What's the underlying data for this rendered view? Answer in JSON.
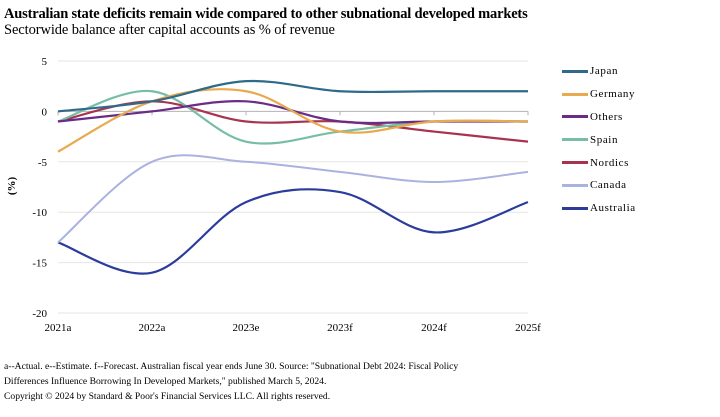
{
  "title": "Australian state deficits remain wide compared to other subnational developed markets",
  "subtitle": "Sectorwide balance after capital accounts as % of revenue",
  "footnote": {
    "line1": "a--Actual. e--Estimate. f--Forecast. Australian fiscal year ends June 30. Source: \"Subnational Debt 2024: Fiscal Policy",
    "line2": "Differences Influence Borrowing In Developed Markets,\" published March 5, 2024.",
    "line3": "Copyright © 2024 by Standard & Poor's Financial Services LLC. All rights reserved."
  },
  "chart_data": {
    "type": "line",
    "title": "Australian state deficits remain wide compared to other subnational developed markets",
    "subtitle": "Sectorwide balance after capital accounts as % of revenue",
    "xlabel": "",
    "ylabel": "(%)",
    "categories": [
      "2021a",
      "2022a",
      "2023e",
      "2023f",
      "2024f",
      "2025f"
    ],
    "ylim": [
      -20,
      5
    ],
    "yticks": [
      5,
      0,
      -5,
      -10,
      -15,
      -20
    ],
    "grid": true,
    "smooth": true,
    "legend_position": "right",
    "series": [
      {
        "name": "Japan",
        "color": "#2e6b8a",
        "values": [
          0,
          1,
          3,
          2,
          2,
          2
        ]
      },
      {
        "name": "Germany",
        "color": "#e9a94f",
        "values": [
          -4,
          1,
          2,
          -2,
          -1,
          -1
        ]
      },
      {
        "name": "Others",
        "color": "#6a2c86",
        "values": [
          -1,
          0,
          1,
          -1,
          -1,
          -1
        ]
      },
      {
        "name": "Spain",
        "color": "#78bea4",
        "values": [
          -1,
          2,
          -3,
          -2,
          -1,
          -1
        ]
      },
      {
        "name": "Nordics",
        "color": "#a8334f",
        "values": [
          -1,
          1,
          -1,
          -1,
          -2,
          -3
        ]
      },
      {
        "name": "Canada",
        "color": "#aab3e0",
        "values": [
          -13,
          -5,
          -5,
          -6,
          -7,
          -6
        ]
      },
      {
        "name": "Australia",
        "color": "#2b3c9c",
        "values": [
          -13,
          -16,
          -9,
          -8,
          -12,
          -9
        ]
      }
    ]
  }
}
